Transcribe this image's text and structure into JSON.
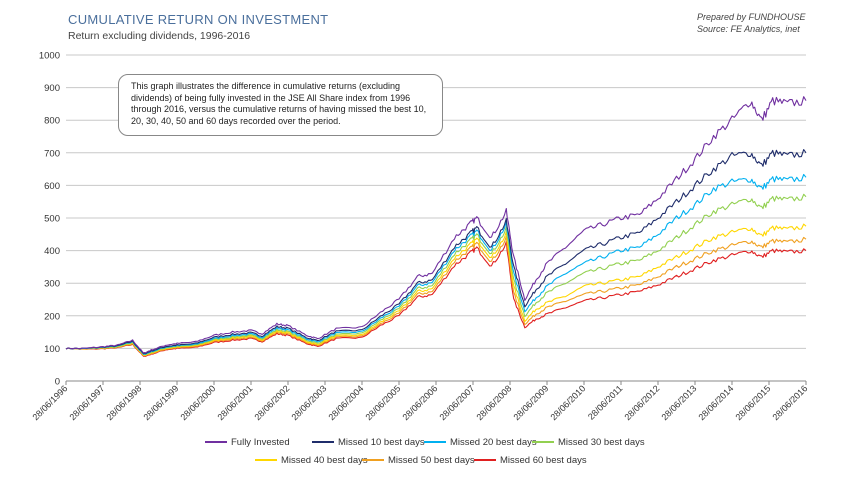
{
  "header": {
    "title": "CUMULATIVE RETURN ON INVESTMENT",
    "subtitle": "Return excluding dividends, 1996-2016",
    "prepared_by": "Prepared by FUNDHOUSE",
    "source": "Source: FE Analytics, inet"
  },
  "annotation": "This graph illustrates the difference in cumulative returns (excluding dividends) of being fully invested in the JSE All Share index from 1996 through 2016, versus the cumulative returns of having missed the best 10, 20, 30, 40, 50 and 60 days recorded over the period.",
  "chart_data": {
    "type": "line",
    "title": "CUMULATIVE RETURN ON INVESTMENT",
    "subtitle": "Return excluding dividends, 1996-2016",
    "xlabel": "",
    "ylabel": "",
    "ylim": [
      0,
      1000
    ],
    "yticks": [
      0,
      100,
      200,
      300,
      400,
      500,
      600,
      700,
      800,
      900,
      1000
    ],
    "xticks": [
      "28/06/1996",
      "28/06/1997",
      "28/06/1998",
      "28/06/1999",
      "28/06/2000",
      "28/06/2001",
      "28/06/2002",
      "28/06/2003",
      "28/06/2004",
      "28/06/2005",
      "28/06/2006",
      "28/06/2007",
      "28/06/2008",
      "28/06/2009",
      "28/06/2010",
      "28/06/2011",
      "28/06/2012",
      "28/06/2013",
      "28/06/2014",
      "28/06/2015",
      "28/06/2016"
    ],
    "grid": "horizontal",
    "legend_position": "bottom",
    "x": [
      1996.5,
      1997.0,
      1997.5,
      1997.9,
      1998.3,
      1998.6,
      1998.8,
      1999.2,
      1999.5,
      2000.0,
      2000.5,
      2001.0,
      2001.5,
      2001.8,
      2002.2,
      2002.5,
      2003.0,
      2003.3,
      2003.8,
      2004.5,
      2005.0,
      2005.5,
      2006.0,
      2006.4,
      2007.0,
      2007.4,
      2007.6,
      2008.0,
      2008.4,
      2008.6,
      2008.9,
      2009.2,
      2009.5,
      2010.0,
      2010.5,
      2011.0,
      2011.5,
      2012.0,
      2012.5,
      2013.0,
      2013.5,
      2014.0,
      2014.5,
      2015.0,
      2015.3,
      2015.6,
      2016.0,
      2016.5
    ],
    "series": [
      {
        "name": "Fully Invested",
        "color": "#7030a0",
        "values": [
          100,
          100,
          105,
          110,
          125,
          85,
          95,
          110,
          115,
          120,
          140,
          150,
          155,
          145,
          175,
          170,
          140,
          130,
          160,
          165,
          210,
          250,
          320,
          330,
          440,
          480,
          500,
          440,
          520,
          380,
          250,
          310,
          360,
          410,
          460,
          480,
          500,
          510,
          560,
          620,
          680,
          750,
          800,
          860,
          800,
          860,
          850,
          860
        ]
      },
      {
        "name": "Missed 10 best days",
        "color": "#1f2d6b",
        "values": [
          100,
          100,
          104,
          108,
          122,
          83,
          92,
          106,
          110,
          115,
          134,
          143,
          148,
          138,
          167,
          162,
          133,
          124,
          152,
          156,
          198,
          235,
          300,
          310,
          412,
          450,
          470,
          410,
          490,
          350,
          230,
          280,
          320,
          360,
          400,
          420,
          440,
          455,
          500,
          550,
          600,
          650,
          690,
          700,
          660,
          700,
          690,
          700
        ]
      },
      {
        "name": "Missed 20 best days",
        "color": "#00b0f0",
        "values": [
          100,
          99,
          103,
          107,
          120,
          81,
          90,
          104,
          108,
          112,
          130,
          139,
          144,
          134,
          162,
          157,
          129,
          120,
          147,
          151,
          192,
          228,
          292,
          302,
          402,
          440,
          460,
          400,
          480,
          330,
          215,
          255,
          290,
          330,
          360,
          380,
          400,
          410,
          450,
          500,
          540,
          590,
          610,
          620,
          590,
          620,
          615,
          625
        ]
      },
      {
        "name": "Missed 30 best days",
        "color": "#92d050",
        "values": [
          100,
          99,
          102,
          105,
          118,
          80,
          88,
          102,
          106,
          110,
          127,
          135,
          140,
          130,
          157,
          152,
          125,
          116,
          142,
          146,
          186,
          221,
          283,
          292,
          390,
          428,
          448,
          390,
          465,
          310,
          200,
          240,
          270,
          300,
          330,
          345,
          360,
          370,
          400,
          440,
          480,
          520,
          540,
          560,
          530,
          560,
          555,
          565
        ]
      },
      {
        "name": "Missed 40 best days",
        "color": "#ffd700",
        "values": [
          100,
          98,
          101,
          104,
          116,
          78,
          86,
          100,
          104,
          108,
          124,
          132,
          137,
          127,
          153,
          148,
          121,
          112,
          138,
          141,
          180,
          214,
          274,
          283,
          378,
          415,
          435,
          378,
          450,
          290,
          185,
          220,
          240,
          260,
          290,
          300,
          310,
          320,
          350,
          380,
          410,
          440,
          455,
          470,
          445,
          470,
          465,
          475
        ]
      },
      {
        "name": "Missed 50 best days",
        "color": "#f0a020",
        "values": [
          100,
          98,
          100,
          103,
          114,
          77,
          84,
          98,
          102,
          105,
          121,
          129,
          133,
          124,
          149,
          144,
          118,
          109,
          134,
          137,
          175,
          207,
          266,
          274,
          367,
          403,
          422,
          366,
          436,
          270,
          175,
          205,
          225,
          245,
          265,
          275,
          285,
          295,
          320,
          350,
          375,
          400,
          415,
          430,
          410,
          430,
          425,
          435
        ]
      },
      {
        "name": "Missed 60 best days",
        "color": "#e02020",
        "values": [
          100,
          97,
          99,
          102,
          112,
          75,
          82,
          96,
          100,
          103,
          118,
          125,
          130,
          121,
          145,
          140,
          115,
          106,
          130,
          133,
          170,
          200,
          257,
          265,
          355,
          390,
          408,
          352,
          420,
          250,
          165,
          190,
          205,
          225,
          245,
          255,
          265,
          275,
          295,
          320,
          345,
          370,
          385,
          400,
          380,
          400,
          395,
          400
        ]
      }
    ]
  }
}
